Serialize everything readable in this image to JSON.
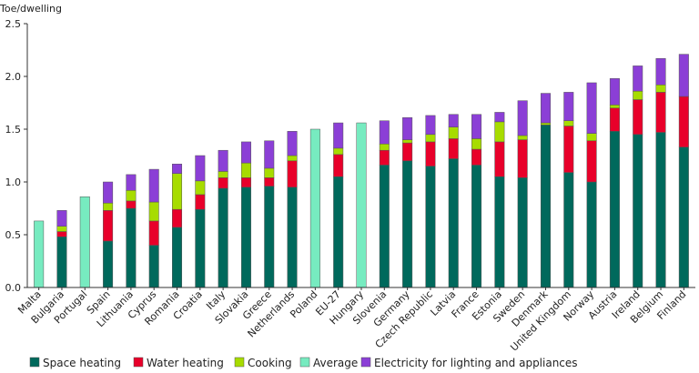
{
  "chart_data": {
    "type": "bar",
    "stacked": true,
    "ylabel": "Toe/dwelling",
    "ylim": [
      0,
      2.5
    ],
    "yticks": [
      "0.0",
      "0.5",
      "1.0",
      "1.5",
      "2.0",
      "2.5"
    ],
    "grid": false,
    "legend_position": "bottom",
    "categories": [
      "Malta",
      "Bulgaria",
      "Portugal",
      "Spain",
      "Lithuania",
      "Cyprus",
      "Romania",
      "Croatia",
      "Italy",
      "Slovakia",
      "Greece",
      "Netherlands",
      "Poland",
      "EU-27",
      "Hungary",
      "Slovenia",
      "Germany",
      "Czech Republic",
      "Latvia",
      "France",
      "Estonia",
      "Sweden",
      "Denmark",
      "United Kingdom",
      "Norway",
      "Austria",
      "Ireland",
      "Belgium",
      "Finland"
    ],
    "series": [
      {
        "name": "Space heating",
        "color": "#00695c",
        "values": [
          0,
          0.48,
          0,
          0.44,
          0.75,
          0.4,
          0.57,
          0.74,
          0.94,
          0.95,
          0.96,
          0.95,
          0,
          1.05,
          0,
          1.16,
          1.2,
          1.15,
          1.22,
          1.16,
          1.05,
          1.04,
          1.54,
          1.09,
          1.0,
          1.48,
          1.45,
          1.47,
          1.33
        ]
      },
      {
        "name": "Water heating",
        "color": "#e8002a",
        "values": [
          0,
          0.05,
          0,
          0.29,
          0.07,
          0.23,
          0.17,
          0.14,
          0.1,
          0.09,
          0.08,
          0.25,
          0,
          0.21,
          0,
          0.14,
          0.17,
          0.23,
          0.19,
          0.15,
          0.33,
          0.36,
          0,
          0.44,
          0.39,
          0.22,
          0.33,
          0.38,
          0.48
        ]
      },
      {
        "name": "Cooking",
        "color": "#a7dc00",
        "values": [
          0,
          0.05,
          0,
          0.07,
          0.1,
          0.18,
          0.34,
          0.13,
          0.06,
          0.14,
          0.09,
          0.05,
          0,
          0.06,
          0,
          0.06,
          0.03,
          0.07,
          0.11,
          0.1,
          0.19,
          0.04,
          0.02,
          0.05,
          0.07,
          0.03,
          0.08,
          0.07,
          0
        ]
      },
      {
        "name": "Average",
        "color": "#77ebc0",
        "values": [
          0.63,
          0,
          0.86,
          0,
          0,
          0,
          0,
          0,
          0,
          0,
          0,
          0,
          1.5,
          0,
          1.56,
          0,
          0,
          0,
          0,
          0,
          0,
          0,
          0,
          0,
          0,
          0,
          0,
          0,
          0
        ]
      },
      {
        "name": "Electricity for lighting and appliances",
        "color": "#8b3fd6",
        "values": [
          0,
          0.15,
          0,
          0.2,
          0.15,
          0.31,
          0.09,
          0.24,
          0.2,
          0.2,
          0.26,
          0.23,
          0,
          0.24,
          0,
          0.22,
          0.21,
          0.18,
          0.12,
          0.23,
          0.09,
          0.33,
          0.28,
          0.27,
          0.48,
          0.25,
          0.24,
          0.25,
          0.4
        ]
      }
    ]
  }
}
